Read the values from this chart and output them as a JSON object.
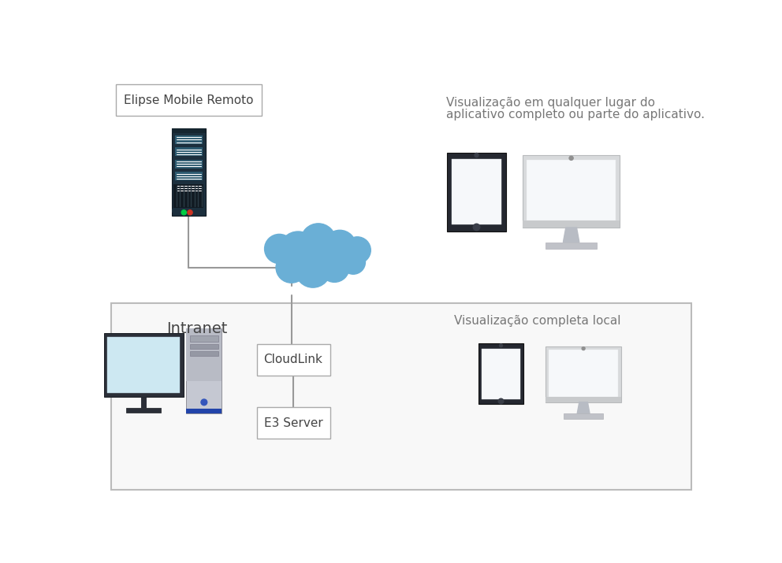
{
  "bg_color": "#ffffff",
  "title_label": "Elipse Mobile Remoto",
  "remote_text1": "Visualização em qualquer lugar do",
  "remote_text2": "aplicativo completo ou parte do aplicativo.",
  "intranet_label": "Intranet",
  "cloudlink_label": "CloudLink",
  "e3server_label": "E3 Server",
  "viz_local_label": "Visualização completa local",
  "cloud_color": "#6aafd6",
  "line_color": "#999999",
  "text_color": "#777777",
  "dark_text": "#444444",
  "box_edge": "#aaaaaa",
  "intranet_edge": "#bbbbbb",
  "server_body": "#1c2f3d",
  "server_slot1": "#2c5a70",
  "server_slot2": "#1e4050",
  "monitor_frame": "#2b2f38",
  "monitor_screen": "#f0f5f8",
  "monitor_stand": "#b0b4bc",
  "tower_body": "#c5c8d2",
  "tower_top": "#b8bbc5",
  "tablet_frame": "#252830",
  "tablet_screen": "#f6f8fa"
}
